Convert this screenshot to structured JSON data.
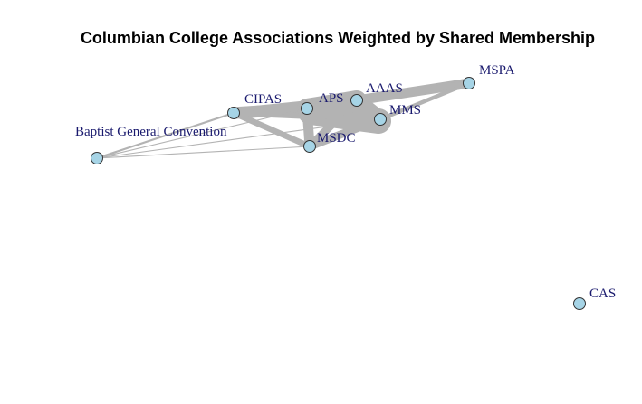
{
  "title": "Columbian College Associations Weighted by Shared Membership",
  "colors": {
    "node_fill": "#a6d4e6",
    "node_stroke": "#333333",
    "edge": "#b3b3b3",
    "label": "#1a1a6e"
  },
  "nodes": [
    {
      "id": "CIPAS",
      "label": "CIPAS"
    },
    {
      "id": "APS",
      "label": "APS"
    },
    {
      "id": "AAAS",
      "label": "AAAS"
    },
    {
      "id": "MMS",
      "label": "MMS"
    },
    {
      "id": "MSPA",
      "label": "MSPA"
    },
    {
      "id": "MSDC",
      "label": "MSDC"
    },
    {
      "id": "BGC",
      "label": "Baptist General Convention"
    },
    {
      "id": "CAS",
      "label": "CAS"
    }
  ],
  "edges": [
    {
      "source": "CIPAS",
      "target": "APS",
      "weight": 6
    },
    {
      "source": "CIPAS",
      "target": "AAAS",
      "weight": 5
    },
    {
      "source": "CIPAS",
      "target": "MMS",
      "weight": 3
    },
    {
      "source": "CIPAS",
      "target": "MSDC",
      "weight": 3
    },
    {
      "source": "APS",
      "target": "AAAS",
      "weight": 10
    },
    {
      "source": "APS",
      "target": "MMS",
      "weight": 9
    },
    {
      "source": "AAAS",
      "target": "MMS",
      "weight": 8
    },
    {
      "source": "AAAS",
      "target": "MSPA",
      "weight": 5
    },
    {
      "source": "APS",
      "target": "MSPA",
      "weight": 3
    },
    {
      "source": "MMS",
      "target": "MSPA",
      "weight": 2
    },
    {
      "source": "MSDC",
      "target": "APS",
      "weight": 5
    },
    {
      "source": "MSDC",
      "target": "AAAS",
      "weight": 4
    },
    {
      "source": "MSDC",
      "target": "MMS",
      "weight": 4
    },
    {
      "source": "BGC",
      "target": "CIPAS",
      "weight": 1
    },
    {
      "source": "BGC",
      "target": "APS",
      "weight": 0.5
    },
    {
      "source": "BGC",
      "target": "MMS",
      "weight": 0.5
    },
    {
      "source": "BGC",
      "target": "MSDC",
      "weight": 0.5
    }
  ]
}
